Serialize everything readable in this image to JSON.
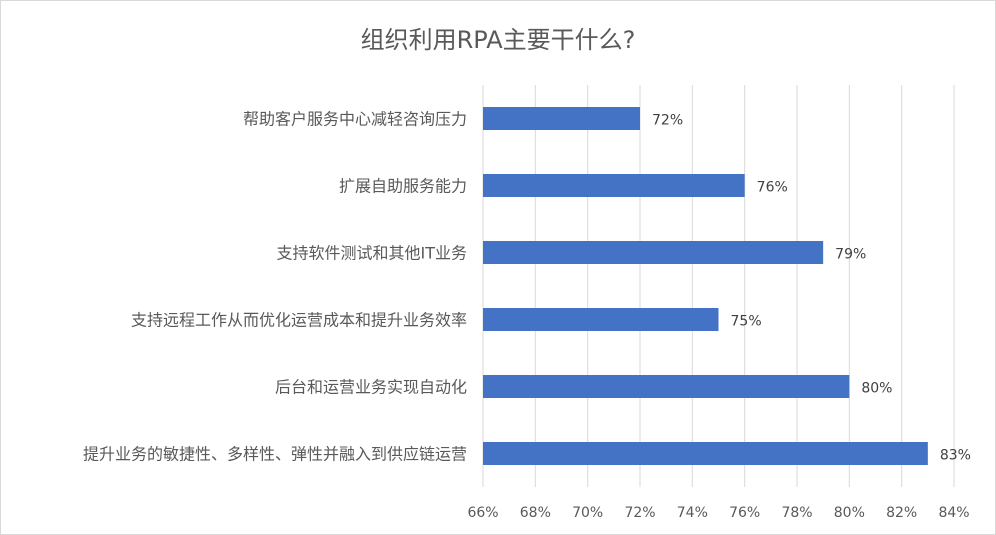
{
  "chart_data": {
    "type": "bar",
    "orientation": "horizontal",
    "title": "组织利用RPA主要干什么?",
    "categories": [
      "帮助客户服务中心减轻咨询压力",
      "扩展自助服务能力",
      "支持软件测试和其他IT业务",
      "支持远程工作从而优化运营成本和提升业务效率",
      "后台和运营业务实现自动化",
      "提升业务的敏捷性、多样性、弹性并融入到供应链运营"
    ],
    "values": [
      72,
      76,
      79,
      75,
      80,
      83
    ],
    "data_labels": [
      "72%",
      "76%",
      "79%",
      "75%",
      "80%",
      "83%"
    ],
    "xlim": [
      66,
      84
    ],
    "xticks": [
      66,
      68,
      70,
      72,
      74,
      76,
      78,
      80,
      82,
      84
    ],
    "xtick_labels": [
      "66%",
      "68%",
      "70%",
      "72%",
      "74%",
      "76%",
      "78%",
      "80%",
      "82%",
      "84%"
    ],
    "xlabel": "",
    "ylabel": "",
    "grid": "vertical",
    "legend": "none",
    "colors": {
      "bar": "#4472c4",
      "grid": "#d9d9d9",
      "text": "#595959"
    }
  }
}
